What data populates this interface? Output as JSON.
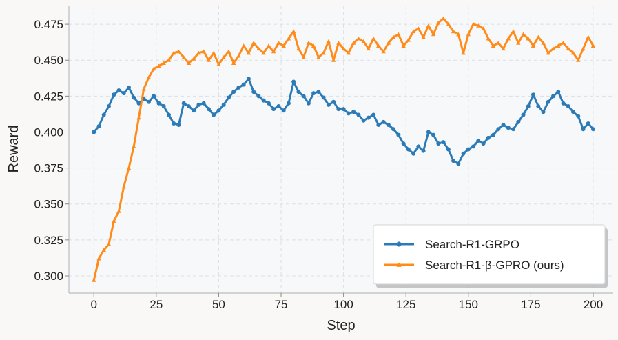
{
  "chart_data": {
    "type": "line",
    "xlabel": "Step",
    "ylabel": "Reward",
    "xlim": [
      -10,
      208
    ],
    "ylim": [
      0.288,
      0.488
    ],
    "xticks": [
      0,
      25,
      50,
      75,
      100,
      125,
      150,
      175,
      200
    ],
    "yticks": [
      0.3,
      0.325,
      0.35,
      0.375,
      0.4,
      0.425,
      0.45,
      0.475
    ],
    "grid": true,
    "legend_position": "bottom-right",
    "series": [
      {
        "name": "Search-R1-GRPO",
        "color": "#2c7bb6",
        "marker": "circle",
        "x": [
          0,
          2,
          4,
          6,
          8,
          10,
          12,
          14,
          16,
          18,
          20,
          22,
          24,
          26,
          28,
          30,
          32,
          34,
          36,
          38,
          40,
          42,
          44,
          46,
          48,
          50,
          52,
          54,
          56,
          58,
          60,
          62,
          64,
          66,
          68,
          70,
          72,
          74,
          76,
          78,
          80,
          82,
          84,
          86,
          88,
          90,
          92,
          94,
          96,
          98,
          100,
          102,
          104,
          106,
          108,
          110,
          112,
          114,
          116,
          118,
          120,
          122,
          124,
          126,
          128,
          130,
          132,
          134,
          136,
          138,
          140,
          142,
          144,
          146,
          148,
          150,
          152,
          154,
          156,
          158,
          160,
          162,
          164,
          166,
          168,
          170,
          172,
          174,
          176,
          178,
          180,
          182,
          184,
          186,
          188,
          190,
          192,
          194,
          196,
          198,
          200
        ],
        "y": [
          0.4,
          0.404,
          0.412,
          0.418,
          0.426,
          0.429,
          0.427,
          0.431,
          0.424,
          0.42,
          0.423,
          0.421,
          0.425,
          0.42,
          0.418,
          0.412,
          0.406,
          0.405,
          0.42,
          0.418,
          0.415,
          0.419,
          0.42,
          0.416,
          0.412,
          0.415,
          0.419,
          0.424,
          0.428,
          0.431,
          0.433,
          0.437,
          0.428,
          0.425,
          0.422,
          0.42,
          0.416,
          0.418,
          0.415,
          0.42,
          0.435,
          0.428,
          0.425,
          0.42,
          0.427,
          0.428,
          0.424,
          0.419,
          0.421,
          0.416,
          0.416,
          0.413,
          0.414,
          0.412,
          0.408,
          0.41,
          0.412,
          0.405,
          0.407,
          0.405,
          0.402,
          0.398,
          0.392,
          0.388,
          0.385,
          0.39,
          0.387,
          0.4,
          0.398,
          0.392,
          0.393,
          0.388,
          0.38,
          0.378,
          0.385,
          0.388,
          0.39,
          0.394,
          0.392,
          0.396,
          0.398,
          0.402,
          0.405,
          0.403,
          0.402,
          0.407,
          0.412,
          0.418,
          0.426,
          0.418,
          0.414,
          0.421,
          0.425,
          0.428,
          0.42,
          0.418,
          0.414,
          0.411,
          0.402,
          0.406,
          0.402
        ]
      },
      {
        "name": "Search-R1-β-GPRO (ours)",
        "color": "#ff8c1a",
        "marker": "triangle",
        "x": [
          0,
          2,
          4,
          6,
          8,
          10,
          12,
          14,
          16,
          18,
          20,
          22,
          24,
          26,
          28,
          30,
          32,
          34,
          36,
          38,
          40,
          42,
          44,
          46,
          48,
          50,
          52,
          54,
          56,
          58,
          60,
          62,
          64,
          66,
          68,
          70,
          72,
          74,
          76,
          78,
          80,
          82,
          84,
          86,
          88,
          90,
          92,
          94,
          96,
          98,
          100,
          102,
          104,
          106,
          108,
          110,
          112,
          114,
          116,
          118,
          120,
          122,
          124,
          126,
          128,
          130,
          132,
          134,
          136,
          138,
          140,
          142,
          144,
          146,
          148,
          150,
          152,
          154,
          156,
          158,
          160,
          162,
          164,
          166,
          168,
          170,
          172,
          174,
          176,
          178,
          180,
          182,
          184,
          186,
          188,
          190,
          192,
          194,
          196,
          198,
          200
        ],
        "y": [
          0.297,
          0.312,
          0.318,
          0.322,
          0.338,
          0.345,
          0.362,
          0.375,
          0.39,
          0.41,
          0.43,
          0.438,
          0.444,
          0.446,
          0.448,
          0.45,
          0.455,
          0.456,
          0.452,
          0.448,
          0.451,
          0.455,
          0.456,
          0.45,
          0.455,
          0.447,
          0.452,
          0.456,
          0.448,
          0.453,
          0.46,
          0.455,
          0.462,
          0.458,
          0.455,
          0.46,
          0.456,
          0.462,
          0.46,
          0.465,
          0.47,
          0.458,
          0.452,
          0.462,
          0.46,
          0.452,
          0.455,
          0.463,
          0.45,
          0.462,
          0.458,
          0.455,
          0.462,
          0.465,
          0.463,
          0.458,
          0.465,
          0.46,
          0.456,
          0.462,
          0.466,
          0.468,
          0.46,
          0.464,
          0.47,
          0.472,
          0.466,
          0.474,
          0.468,
          0.476,
          0.479,
          0.475,
          0.47,
          0.468,
          0.455,
          0.468,
          0.475,
          0.474,
          0.472,
          0.465,
          0.46,
          0.462,
          0.458,
          0.465,
          0.47,
          0.462,
          0.468,
          0.465,
          0.46,
          0.466,
          0.462,
          0.455,
          0.458,
          0.46,
          0.462,
          0.458,
          0.455,
          0.45,
          0.458,
          0.466,
          0.46
        ]
      }
    ]
  }
}
